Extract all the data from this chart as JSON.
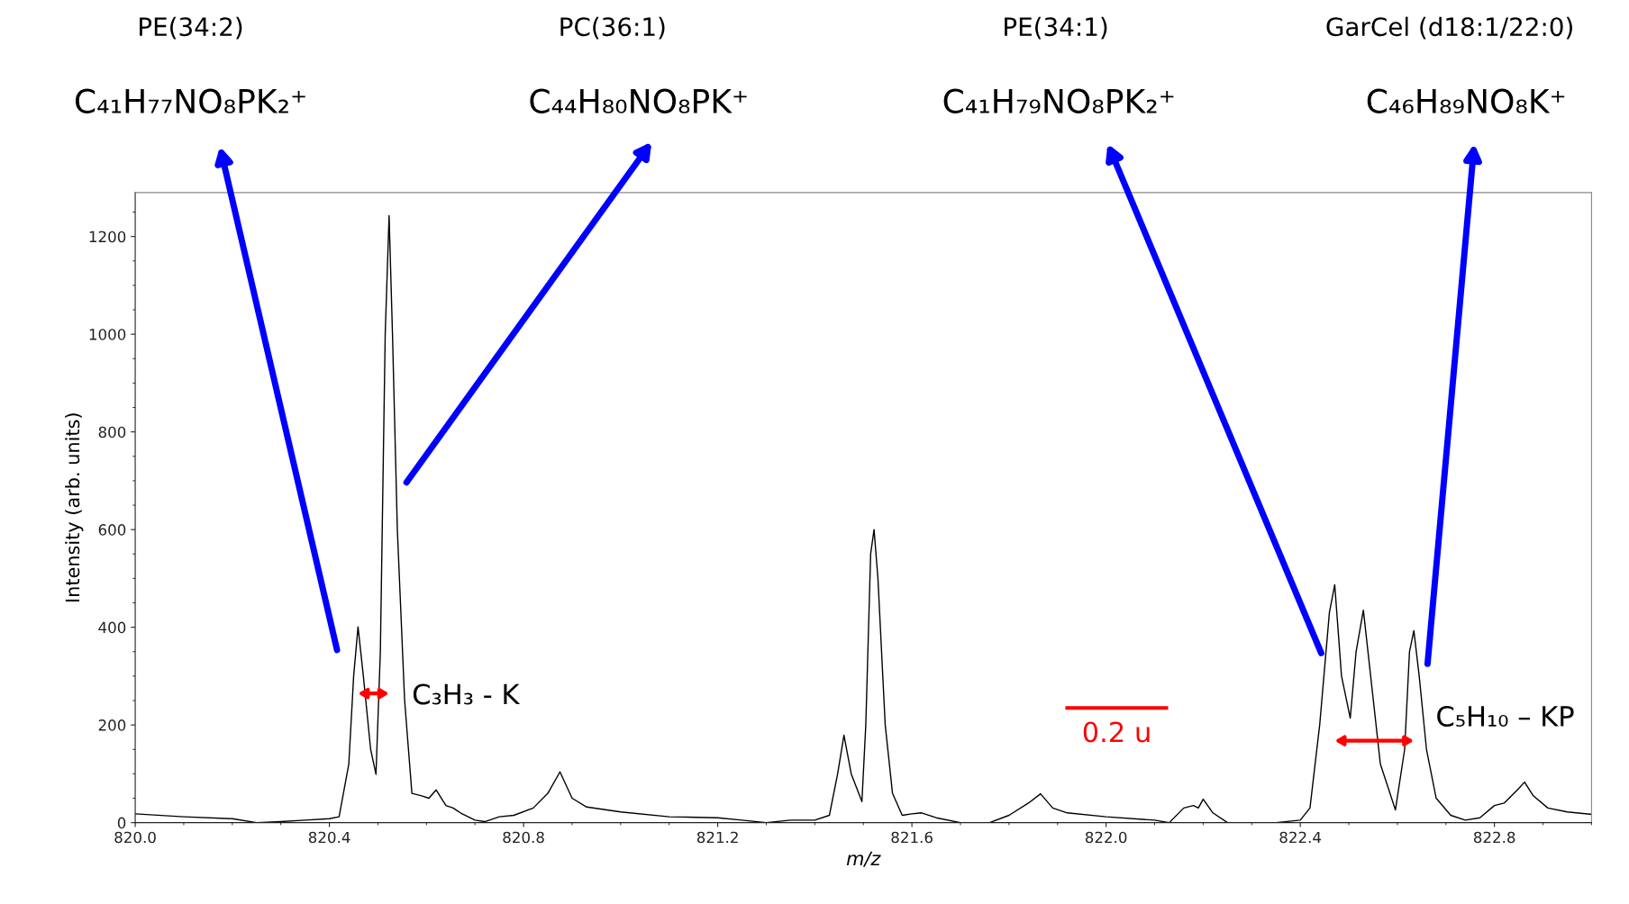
{
  "chart_data": {
    "type": "line",
    "xlabel": "m/z",
    "ylabel": "Intensity (arb. units)",
    "x": [
      820.0,
      820.1,
      820.2,
      820.25,
      820.3,
      820.35,
      820.4,
      820.42,
      820.44,
      820.45,
      820.459,
      820.47,
      820.485,
      820.496,
      820.505,
      820.515,
      820.523,
      820.53,
      820.54,
      820.555,
      820.57,
      820.59,
      820.605,
      820.62,
      820.64,
      820.655,
      820.67,
      820.7,
      820.72,
      820.75,
      820.78,
      820.82,
      820.85,
      820.875,
      820.9,
      820.93,
      821.0,
      821.1,
      821.2,
      821.25,
      821.3,
      821.35,
      821.4,
      821.43,
      821.447,
      821.46,
      821.475,
      821.497,
      821.505,
      821.515,
      821.522,
      821.53,
      821.545,
      821.56,
      821.58,
      821.6,
      821.62,
      821.65,
      821.7,
      821.76,
      821.8,
      821.84,
      821.865,
      821.89,
      821.92,
      822.0,
      822.1,
      822.13,
      822.16,
      822.18,
      822.19,
      822.2,
      822.22,
      822.25,
      822.35,
      822.4,
      822.42,
      822.44,
      822.46,
      822.471,
      822.485,
      822.503,
      822.515,
      822.53,
      822.545,
      822.565,
      822.596,
      822.615,
      822.625,
      822.634,
      822.645,
      822.66,
      822.68,
      822.71,
      822.74,
      822.77,
      822.8,
      822.82,
      822.85,
      822.862,
      822.88,
      822.91,
      822.95,
      823.0
    ],
    "series": [
      {
        "color": "#000000",
        "values": [
          18,
          12,
          8,
          0,
          2,
          5,
          8,
          12,
          120,
          300,
          401,
          300,
          150,
          99,
          350,
          1000,
          1243,
          1000,
          600,
          250,
          60,
          55,
          50,
          67,
          35,
          30,
          20,
          5,
          2,
          12,
          15,
          30,
          60,
          104,
          50,
          32,
          22,
          12,
          10,
          5,
          0,
          5,
          5,
          15,
          100,
          179,
          100,
          43,
          200,
          550,
          600,
          500,
          200,
          60,
          15,
          18,
          20,
          10,
          0,
          0,
          15,
          40,
          59,
          30,
          20,
          12,
          5,
          0,
          30,
          35,
          30,
          48,
          20,
          0,
          0,
          5,
          30,
          200,
          430,
          487,
          300,
          214,
          350,
          435,
          300,
          120,
          26,
          150,
          350,
          393,
          300,
          150,
          50,
          15,
          5,
          10,
          35,
          40,
          70,
          83,
          55,
          30,
          22,
          17
        ]
      }
    ],
    "xlim": [
      820.0,
      823.0
    ],
    "xticks": [
      {
        "value": 820.0,
        "label": "820.0"
      },
      820.4,
      820.8,
      821.2,
      821.6,
      {
        "value": 822.0,
        "label": "822.0"
      },
      822.4,
      822.8
    ],
    "ylim": [
      0,
      1290
    ],
    "yticks": [
      0,
      200,
      400,
      600,
      800,
      1000,
      1200
    ],
    "marker": "none",
    "line_style": "solid",
    "grid": false,
    "legend": false,
    "annotations": [
      "PE(34:2)",
      "C₄₁H₇₇NO₈PK₂⁺",
      "PC(36:1)",
      "C₄₄H₈₀NO₈PK⁺",
      "PE(34:1)",
      "C₄₁H₇₉NO₈PK₂⁺",
      "GarCel (d18:1/22:0)",
      "C₄₆H₈₉NO₈K⁺",
      "C₃H₃ - K",
      "0.2 u",
      "C₅H₁₀ – KP"
    ]
  }
}
